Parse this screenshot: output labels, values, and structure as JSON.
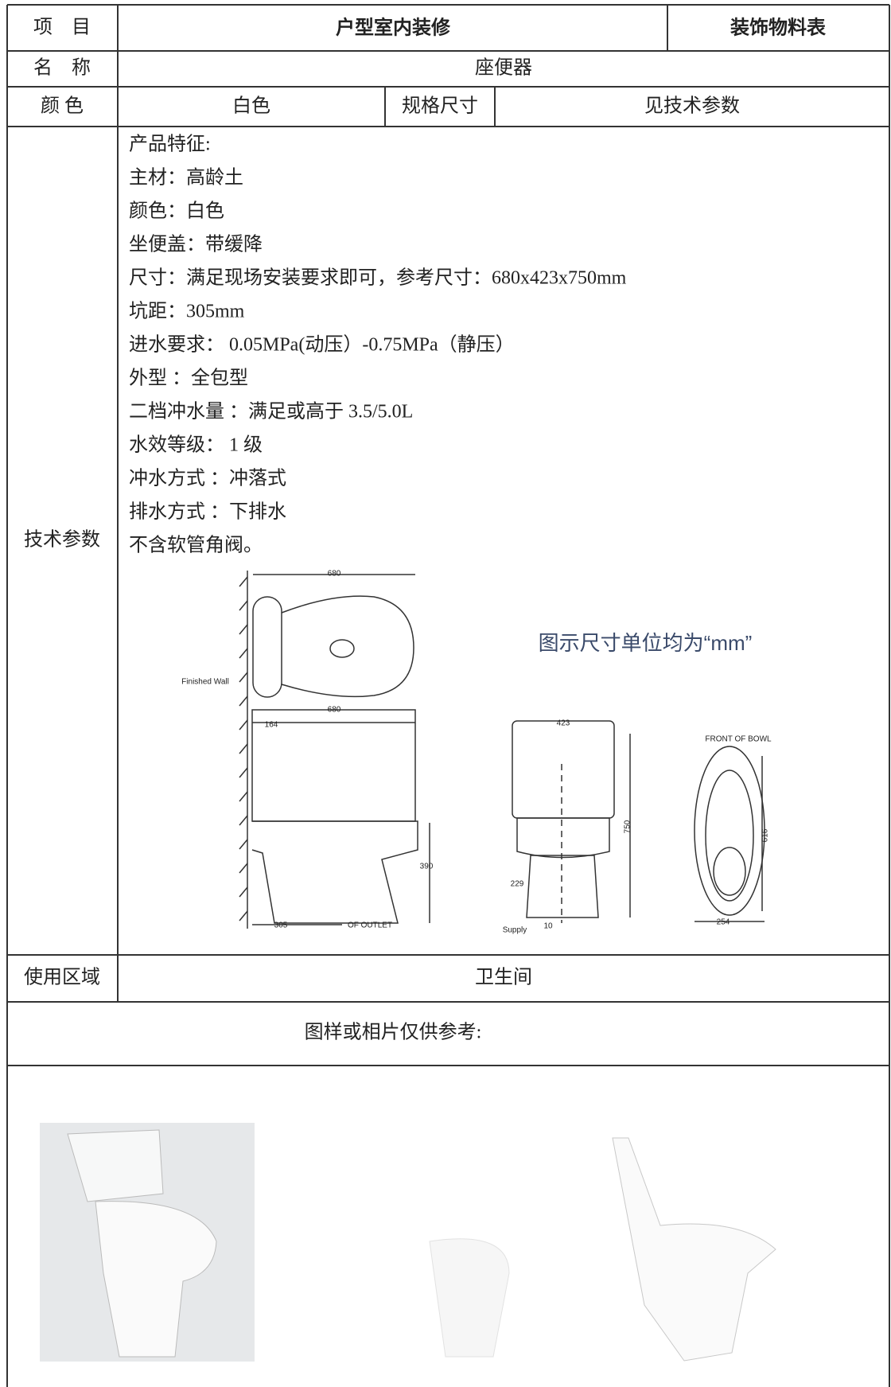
{
  "header": {
    "item_label": "项　目",
    "project": "户型室内装修",
    "doc_type": "装饰物料表"
  },
  "rows": {
    "name_label": "名　称",
    "name": "座便器",
    "color_label": "颜 色",
    "color": "白色",
    "spec_label": "规格尺寸",
    "spec": "见技术参数",
    "tech_label": "技术参数",
    "usage_label": "使用区域",
    "usage": "卫生间"
  },
  "tech_params": [
    "产品特征:",
    "主材：高龄土",
    "颜色：白色",
    "坐便盖：带缓降",
    "尺寸：满足现场安装要求即可，参考尺寸：680x423x750mm",
    "坑距：305mm",
    "进水要求： 0.05MPa(动压）-0.75MPa（静压）",
    "外型 ：全包型",
    "二档冲水量 ：满足或高于 3.5/5.0L",
    "水效等级： 1 级",
    "冲水方式 ：冲落式",
    "排水方式 ：下排水",
    "不含软管角阀。"
  ],
  "diagram": {
    "note": "图示尺寸单位均为“mm”",
    "labels": [
      "680",
      "Finished Wall",
      "680",
      "164",
      "390",
      "305",
      "OF OUTLET",
      "423",
      "750",
      "229",
      "10",
      "Supply",
      "FRONT OF BOWL",
      "616",
      "254"
    ]
  },
  "photos_caption": "图样或相片仅供参考:"
}
